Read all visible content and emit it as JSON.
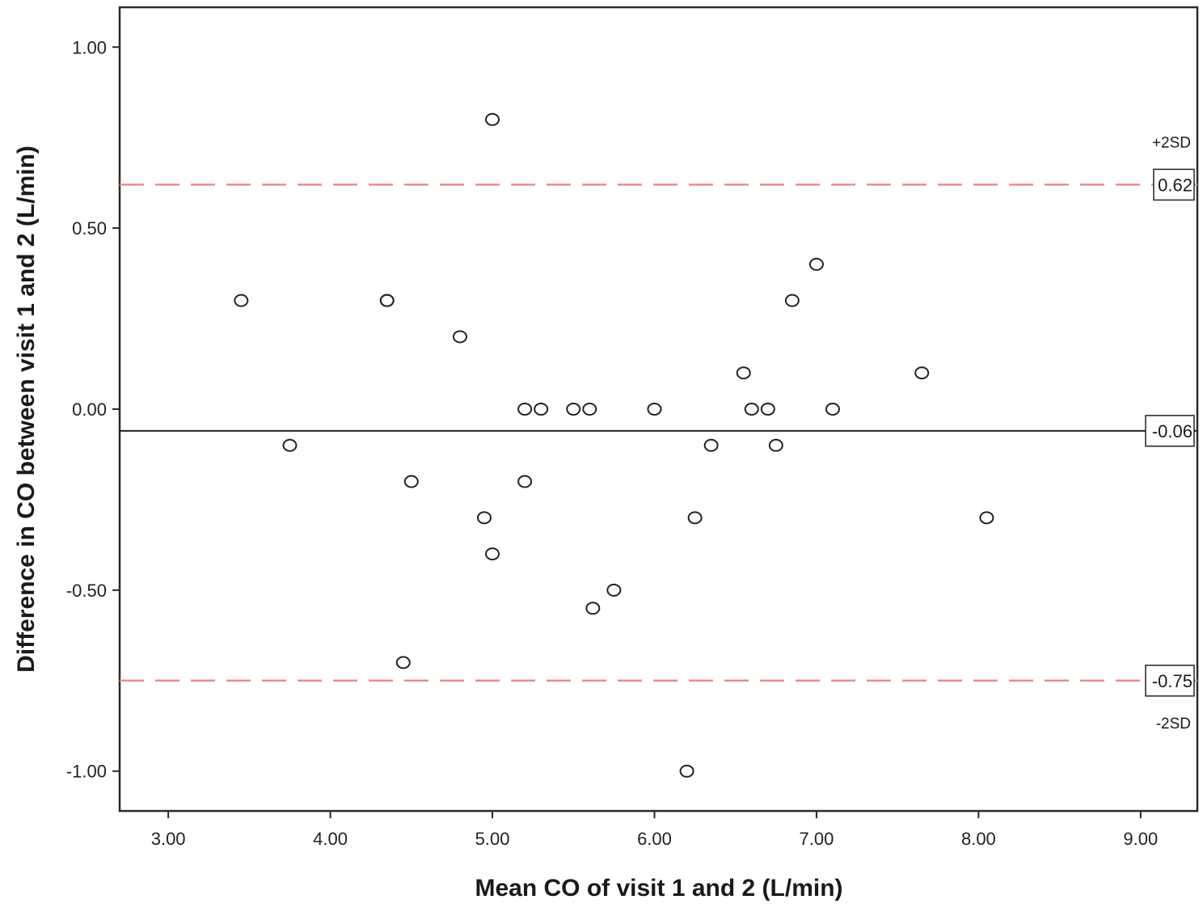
{
  "chart_data": {
    "type": "scatter",
    "title": "",
    "xlabel": "Mean  CO of visit 1 and 2 (L/min)",
    "ylabel": "Difference in CO between visit 1 and 2 (L/min)",
    "xlim": [
      2.7,
      9.35
    ],
    "ylim": [
      -1.11,
      1.11
    ],
    "x_ticks": [
      "3.00",
      "4.00",
      "5.00",
      "6.00",
      "7.00",
      "8.00",
      "9.00"
    ],
    "y_ticks": [
      "1.00",
      "0.50",
      "0.00",
      "-0.50",
      "-1.00"
    ],
    "grid": false,
    "points": [
      {
        "x": 3.45,
        "y": 0.3
      },
      {
        "x": 3.75,
        "y": -0.1
      },
      {
        "x": 4.35,
        "y": 0.3
      },
      {
        "x": 4.35,
        "y": 0.3
      },
      {
        "x": 4.45,
        "y": -0.7
      },
      {
        "x": 4.5,
        "y": -0.2
      },
      {
        "x": 4.8,
        "y": 0.2
      },
      {
        "x": 4.95,
        "y": -0.3
      },
      {
        "x": 5.0,
        "y": 0.8
      },
      {
        "x": 5.0,
        "y": -0.4
      },
      {
        "x": 5.2,
        "y": 0.0
      },
      {
        "x": 5.2,
        "y": -0.2
      },
      {
        "x": 5.3,
        "y": 0.0
      },
      {
        "x": 5.5,
        "y": 0.0
      },
      {
        "x": 5.6,
        "y": 0.0
      },
      {
        "x": 5.62,
        "y": -0.55
      },
      {
        "x": 5.75,
        "y": -0.5
      },
      {
        "x": 6.0,
        "y": 0.0
      },
      {
        "x": 6.2,
        "y": -1.0
      },
      {
        "x": 6.25,
        "y": -0.3
      },
      {
        "x": 6.35,
        "y": -0.1
      },
      {
        "x": 6.55,
        "y": 0.1
      },
      {
        "x": 6.6,
        "y": 0.0
      },
      {
        "x": 6.7,
        "y": 0.0
      },
      {
        "x": 6.75,
        "y": -0.1
      },
      {
        "x": 6.85,
        "y": 0.3
      },
      {
        "x": 7.0,
        "y": 0.4
      },
      {
        "x": 7.1,
        "y": 0.0
      },
      {
        "x": 7.65,
        "y": 0.1
      },
      {
        "x": 8.05,
        "y": -0.3
      }
    ],
    "reference_lines": [
      {
        "value": 0.62,
        "label": "0.62",
        "annotation": "+2SD",
        "style": "dashed",
        "color": "#f28b8b"
      },
      {
        "value": -0.06,
        "label": "-0.06",
        "annotation": "",
        "style": "solid",
        "color": "#222222"
      },
      {
        "value": -0.75,
        "label": "-0.75",
        "annotation": "-2SD",
        "style": "dashed",
        "color": "#f28b8b"
      }
    ]
  }
}
